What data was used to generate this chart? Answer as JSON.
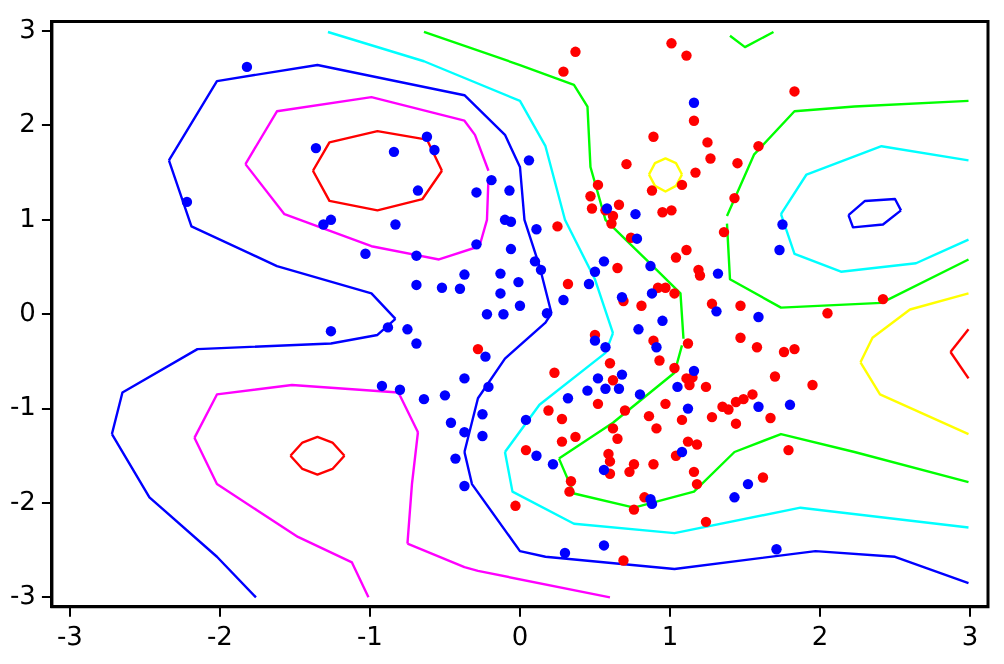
{
  "chart_data": {
    "type": "scatter",
    "xlim": [
      -3.12,
      3.12
    ],
    "ylim": [
      -3.1,
      3.1
    ],
    "xticks": [
      -3,
      -2,
      -1,
      0,
      1,
      2,
      3
    ],
    "yticks": [
      -3,
      -2,
      -1,
      0,
      1,
      2,
      3
    ],
    "series": [
      {
        "type": "line",
        "marker": "none",
        "color": "#0000ff",
        "x": [
          -2.72,
          -2.47,
          -2.02,
          -1.76
        ],
        "values": [
          -1.27,
          -1.94,
          -2.57,
          -3.0
        ]
      },
      {
        "type": "line",
        "marker": "none",
        "color": "#0000ff",
        "x": [
          -2.72,
          -2.65,
          -2.15,
          -1.26,
          -0.95,
          -0.83
        ],
        "values": [
          -1.27,
          -0.83,
          -0.37,
          -0.31,
          -0.22,
          -0.05
        ]
      },
      {
        "type": "line",
        "marker": "none",
        "color": "#0000ff",
        "x": [
          -2.34,
          -2.19,
          -1.62,
          -0.99,
          -0.83
        ],
        "values": [
          1.63,
          0.93,
          0.51,
          0.22,
          -0.05
        ]
      },
      {
        "type": "line",
        "marker": "none",
        "color": "#0000ff",
        "x": [
          -2.34,
          -2.02,
          -1.35,
          -0.37,
          -0.1,
          0,
          0.03,
          0.13,
          0.21
        ],
        "values": [
          1.63,
          2.47,
          2.64,
          2.32,
          1.9,
          1.56,
          1.0,
          0.51,
          0.01
        ]
      },
      {
        "type": "line",
        "marker": "none",
        "color": "#0000ff",
        "x": [
          -0.37,
          -0.28,
          -0.1,
          0.17,
          0.21
        ],
        "values": [
          -1.46,
          -0.89,
          -0.47,
          -0.09,
          0.01
        ]
      },
      {
        "type": "line",
        "marker": "none",
        "color": "#0000ff",
        "x": [
          -0.37,
          -0.32,
          0,
          0.17,
          1.03,
          1.97,
          2.5,
          2.99
        ],
        "values": [
          -1.46,
          -1.8,
          -2.51,
          -2.57,
          -2.7,
          -2.51,
          -2.57,
          -2.85
        ]
      },
      {
        "type": "line",
        "marker": "none",
        "color": "#0000ff",
        "x": [
          2.19,
          2.3,
          2.5,
          2.54
        ],
        "values": [
          1.05,
          1.2,
          1.22,
          1.1
        ]
      },
      {
        "type": "line",
        "marker": "none",
        "color": "#0000ff",
        "x": [
          2.19,
          2.22,
          2.42,
          2.54
        ],
        "values": [
          1.05,
          0.92,
          0.95,
          1.1
        ]
      },
      {
        "type": "line",
        "marker": "none",
        "color": "#ff00ff",
        "x": [
          -1.83,
          -1.62,
          -0.99,
          -0.37,
          -0.3,
          -0.21
        ],
        "values": [
          1.59,
          2.15,
          2.3,
          2.05,
          1.9,
          1.52
        ]
      },
      {
        "type": "line",
        "marker": "none",
        "color": "#ff00ff",
        "x": [
          -1.83,
          -1.57,
          -0.99,
          -0.54,
          -0.27,
          -0.22,
          -0.21
        ],
        "values": [
          1.59,
          1.06,
          0.72,
          0.58,
          0.72,
          1.0,
          1.44
        ]
      },
      {
        "type": "line",
        "marker": "none",
        "color": "#ff00ff",
        "x": [
          -2.17,
          -2.02,
          -1.48,
          -1.12,
          -1.01
        ],
        "values": [
          -1.31,
          -1.8,
          -2.36,
          -2.63,
          -3.0
        ]
      },
      {
        "type": "line",
        "marker": "none",
        "color": "#ff00ff",
        "x": [
          -2.17,
          -2.02,
          -1.52,
          -0.81,
          -0.68
        ],
        "values": [
          -1.31,
          -0.85,
          -0.75,
          -0.83,
          -1.25
        ]
      },
      {
        "type": "line",
        "marker": "none",
        "color": "#ff00ff",
        "x": [
          -0.75,
          -0.72,
          -0.68
        ],
        "values": [
          -2.43,
          -1.8,
          -1.25
        ]
      },
      {
        "type": "line",
        "marker": "none",
        "color": "#ff00ff",
        "x": [
          -0.75,
          -0.37,
          -0.28,
          0.6
        ],
        "values": [
          -2.43,
          -2.68,
          -2.72,
          -3.0
        ]
      },
      {
        "type": "line",
        "marker": "none",
        "color": "#ff0000",
        "x": [
          -1.38,
          -1.27,
          -0.95,
          -0.62,
          -0.52
        ],
        "values": [
          1.52,
          1.82,
          1.94,
          1.85,
          1.52
        ]
      },
      {
        "type": "line",
        "marker": "none",
        "color": "#ff0000",
        "x": [
          -1.38,
          -1.27,
          -0.95,
          -0.65,
          -0.52
        ],
        "values": [
          1.52,
          1.2,
          1.1,
          1.22,
          1.52
        ]
      },
      {
        "type": "line",
        "marker": "none",
        "color": "#ff0000",
        "x": [
          -1.53,
          -1.45,
          -1.35,
          -1.25,
          -1.17
        ],
        "values": [
          -1.5,
          -1.36,
          -1.3,
          -1.36,
          -1.5
        ]
      },
      {
        "type": "line",
        "marker": "none",
        "color": "#ff0000",
        "x": [
          -1.53,
          -1.45,
          -1.35,
          -1.25,
          -1.17
        ],
        "values": [
          -1.5,
          -1.64,
          -1.7,
          -1.64,
          -1.5
        ]
      },
      {
        "type": "line",
        "marker": "none",
        "color": "#ff0000",
        "x": [
          2.87,
          2.99
        ],
        "values": [
          -0.4,
          -0.16
        ]
      },
      {
        "type": "line",
        "marker": "none",
        "color": "#ff0000",
        "x": [
          2.87,
          2.99
        ],
        "values": [
          -0.4,
          -0.68
        ]
      },
      {
        "type": "line",
        "marker": "none",
        "color": "#ffff00",
        "x": [
          0.86,
          0.9,
          0.97,
          1.04,
          1.08
        ],
        "values": [
          1.48,
          1.6,
          1.65,
          1.6,
          1.48
        ]
      },
      {
        "type": "line",
        "marker": "none",
        "color": "#ffff00",
        "x": [
          0.86,
          0.9,
          0.97,
          1.04,
          1.08
        ],
        "values": [
          1.48,
          1.36,
          1.3,
          1.36,
          1.48
        ]
      },
      {
        "type": "line",
        "marker": "none",
        "color": "#ffff00",
        "x": [
          2.27,
          2.35,
          2.6,
          2.99
        ],
        "values": [
          -0.51,
          -0.25,
          0.05,
          0.22
        ]
      },
      {
        "type": "line",
        "marker": "none",
        "color": "#ffff00",
        "x": [
          2.27,
          2.4,
          2.99
        ],
        "values": [
          -0.51,
          -0.85,
          -1.27
        ]
      },
      {
        "type": "line",
        "marker": "none",
        "color": "#00ffff",
        "x": [
          -1.28,
          -0.64,
          0,
          0.17,
          0.3,
          0.5,
          0.62
        ],
        "values": [
          2.99,
          2.68,
          2.26,
          1.78,
          1.0,
          0.37,
          -0.2
        ]
      },
      {
        "type": "line",
        "marker": "none",
        "color": "#00ffff",
        "x": [
          -0.1,
          0.13,
          0.57,
          0.62
        ],
        "values": [
          -1.46,
          -0.96,
          -0.41,
          -0.2
        ]
      },
      {
        "type": "line",
        "marker": "none",
        "color": "#00ffff",
        "x": [
          -0.1,
          -0.05,
          0.36,
          1.03,
          1.87,
          2.99
        ],
        "values": [
          -1.46,
          -1.88,
          -2.22,
          -2.32,
          -2.05,
          -2.26
        ]
      },
      {
        "type": "line",
        "marker": "none",
        "color": "#00ffff",
        "x": [
          1.74,
          1.91,
          2.41,
          2.99
        ],
        "values": [
          1.06,
          1.48,
          1.78,
          1.63
        ]
      },
      {
        "type": "line",
        "marker": "none",
        "color": "#00ffff",
        "x": [
          1.74,
          1.83,
          2.14,
          2.64,
          2.99
        ],
        "values": [
          1.06,
          0.64,
          0.45,
          0.54,
          0.79
        ]
      },
      {
        "type": "line",
        "marker": "none",
        "color": "#00ff00",
        "x": [
          -0.64,
          0,
          0.36,
          0.45,
          0.47,
          0.57,
          0.84,
          1.07,
          1.09
        ],
        "values": [
          2.99,
          2.64,
          2.43,
          2.2,
          1.56,
          1.0,
          0.58,
          0.22,
          -0.26
        ]
      },
      {
        "type": "line",
        "marker": "none",
        "color": "#00ff00",
        "x": [
          0.26,
          0.62,
          1.03,
          1.08
        ],
        "values": [
          -1.53,
          -1.15,
          -0.62,
          -0.33
        ]
      },
      {
        "type": "line",
        "marker": "none",
        "color": "#00ff00",
        "x": [
          0.26,
          0.36,
          0.76,
          1.16,
          1.43,
          1.74,
          2.23,
          2.99
        ],
        "values": [
          -1.53,
          -1.9,
          -2.05,
          -1.88,
          -1.46,
          -1.27,
          -1.46,
          -1.78
        ]
      },
      {
        "type": "line",
        "marker": "none",
        "color": "#00ff00",
        "x": [
          1.4,
          1.5,
          1.69
        ],
        "values": [
          2.95,
          2.83,
          2.99
        ]
      },
      {
        "type": "line",
        "marker": "none",
        "color": "#00ff00",
        "x": [
          1.38,
          1.56,
          1.83,
          2.23,
          2.99
        ],
        "values": [
          1.04,
          1.69,
          2.15,
          2.2,
          2.26
        ]
      },
      {
        "type": "line",
        "marker": "none",
        "color": "#00ff00",
        "x": [
          1.38,
          1.4,
          1.74,
          2.41,
          2.99
        ],
        "values": [
          0.96,
          0.37,
          0.07,
          0.12,
          0.58
        ]
      },
      {
        "type": "scatter",
        "marker": "circle",
        "color": "#0000ff",
        "x": [
          -1.82,
          -2.22,
          -1.36,
          -0.84,
          -0.62,
          -0.57,
          -0.68,
          -0.29,
          -1.31,
          -1.26,
          -0.83,
          -1.03,
          -0.69,
          -0.29,
          -0.69,
          -0.52,
          -0.4,
          -0.37,
          -1.26,
          -0.88,
          -0.75,
          -0.69,
          -0.92,
          -0.8,
          -0.64,
          -0.5,
          -0.37,
          -0.46,
          -0.37,
          -0.43,
          -0.37,
          1.16,
          0.06,
          -0.19,
          -0.07,
          -0.1,
          -0.06,
          0.11,
          0.58,
          0.77,
          0.78,
          -0.06,
          0.1,
          0.14,
          0.56,
          -0.13,
          -0.01,
          0.46,
          0.5,
          0.87,
          -0.13,
          0.0,
          0.29,
          0.68,
          0.88,
          1.32,
          -0.22,
          -0.11,
          0.18,
          1.31,
          1.59,
          1.75,
          1.73,
          0.79,
          0.95,
          0.5,
          0.57,
          0.91,
          -0.23,
          -0.21,
          0.52,
          0.68,
          0.45,
          0.57,
          0.66,
          1.05,
          1.16,
          0.8,
          0.32,
          1.59,
          1.8,
          1.12,
          -0.25,
          0.04,
          -0.25,
          0.11,
          0.22,
          0.56,
          1.08,
          0.87,
          0.88,
          1.43,
          1.52,
          0.3,
          0.56,
          1.71
        ],
        "values": [
          2.62,
          1.19,
          1.76,
          1.72,
          1.88,
          1.74,
          1.31,
          1.29,
          0.95,
          1.0,
          0.95,
          0.64,
          0.62,
          0.74,
          0.31,
          0.28,
          0.27,
          0.42,
          -0.18,
          -0.14,
          -0.16,
          -0.31,
          -0.76,
          -0.8,
          -0.9,
          -0.86,
          -0.68,
          -1.15,
          -1.25,
          -1.53,
          -1.82,
          2.24,
          1.63,
          1.42,
          1.31,
          1.0,
          0.98,
          0.9,
          1.12,
          1.06,
          0.8,
          0.69,
          0.56,
          0.47,
          0.56,
          0.43,
          0.34,
          0.32,
          0.45,
          0.51,
          0.22,
          0.09,
          0.15,
          0.18,
          0.22,
          0.43,
          0.0,
          0.0,
          0.01,
          0.03,
          -0.03,
          0.95,
          0.68,
          -0.16,
          -0.07,
          -0.28,
          -0.35,
          -0.35,
          -0.45,
          -0.77,
          -0.68,
          -0.64,
          -0.81,
          -0.79,
          -0.79,
          -0.77,
          -0.6,
          -0.85,
          -0.89,
          -0.98,
          -0.96,
          -1.0,
          -1.06,
          -1.12,
          -1.29,
          -1.5,
          -1.59,
          -1.65,
          -1.46,
          -1.96,
          -2.01,
          -1.94,
          -1.8,
          -2.53,
          -2.45,
          -2.49
        ]
      },
      {
        "type": "scatter",
        "marker": "circle",
        "color": "#ff0000",
        "x": [
          0.37,
          0.29,
          1.01,
          1.11,
          1.83,
          1.16,
          0.89,
          1.25,
          1.59,
          0.71,
          1.27,
          1.45,
          1.17,
          1.08,
          0.88,
          0.52,
          0.47,
          0.48,
          0.57,
          0.66,
          0.62,
          0.61,
          0.95,
          1.01,
          1.43,
          1.36,
          0.74,
          0.25,
          1.11,
          1.04,
          0.65,
          1.19,
          1.2,
          0.32,
          0.97,
          0.92,
          1.03,
          0.69,
          0.81,
          1.28,
          1.47,
          2.05,
          2.42,
          0.5,
          0.89,
          1.12,
          1.47,
          1.58,
          1.76,
          1.83,
          0.6,
          0.93,
          1.03,
          0.23,
          0.62,
          1.11,
          1.15,
          1.13,
          1.24,
          1.7,
          1.95,
          0.52,
          0.19,
          0.7,
          0.97,
          1.35,
          1.39,
          1.44,
          1.49,
          1.55,
          0.28,
          0.86,
          1.08,
          1.28,
          1.44,
          1.67,
          0.62,
          0.91,
          0.37,
          0.28,
          0.65,
          1.12,
          1.18,
          1.79,
          0.04,
          0.59,
          1.04,
          0.6,
          0.76,
          0.89,
          0.6,
          0.73,
          1.16,
          0.34,
          1.18,
          1.62,
          0.33,
          0.83,
          0.76,
          -0.03,
          1.24,
          0.69,
          -0.28
        ],
        "values": [
          2.78,
          2.57,
          2.87,
          2.74,
          2.36,
          2.05,
          1.88,
          1.82,
          1.78,
          1.59,
          1.65,
          1.6,
          1.5,
          1.37,
          1.31,
          1.37,
          1.25,
          1.12,
          1.1,
          1.16,
          1.04,
          0.96,
          1.08,
          1.1,
          1.23,
          0.87,
          0.81,
          0.93,
          0.68,
          0.6,
          0.49,
          0.47,
          0.41,
          0.32,
          0.28,
          0.28,
          0.22,
          0.14,
          0.09,
          0.11,
          0.09,
          0.01,
          0.16,
          -0.22,
          -0.28,
          -0.31,
          -0.25,
          -0.35,
          -0.4,
          -0.37,
          -0.52,
          -0.49,
          -0.57,
          -0.62,
          -0.7,
          -0.68,
          -0.67,
          -0.75,
          -0.77,
          -0.66,
          -0.75,
          -0.95,
          -1.02,
          -1.02,
          -0.95,
          -0.98,
          -1.01,
          -0.93,
          -0.9,
          -0.85,
          -1.11,
          -1.08,
          -1.12,
          -1.09,
          -1.16,
          -1.1,
          -1.21,
          -1.21,
          -1.3,
          -1.35,
          -1.32,
          -1.35,
          -1.38,
          -1.44,
          -1.44,
          -1.48,
          -1.5,
          -1.56,
          -1.59,
          -1.59,
          -1.69,
          -1.67,
          -1.67,
          -1.77,
          -1.8,
          -1.73,
          -1.88,
          -1.94,
          -2.07,
          -2.03,
          -2.2,
          -2.61,
          -0.37
        ]
      }
    ]
  }
}
